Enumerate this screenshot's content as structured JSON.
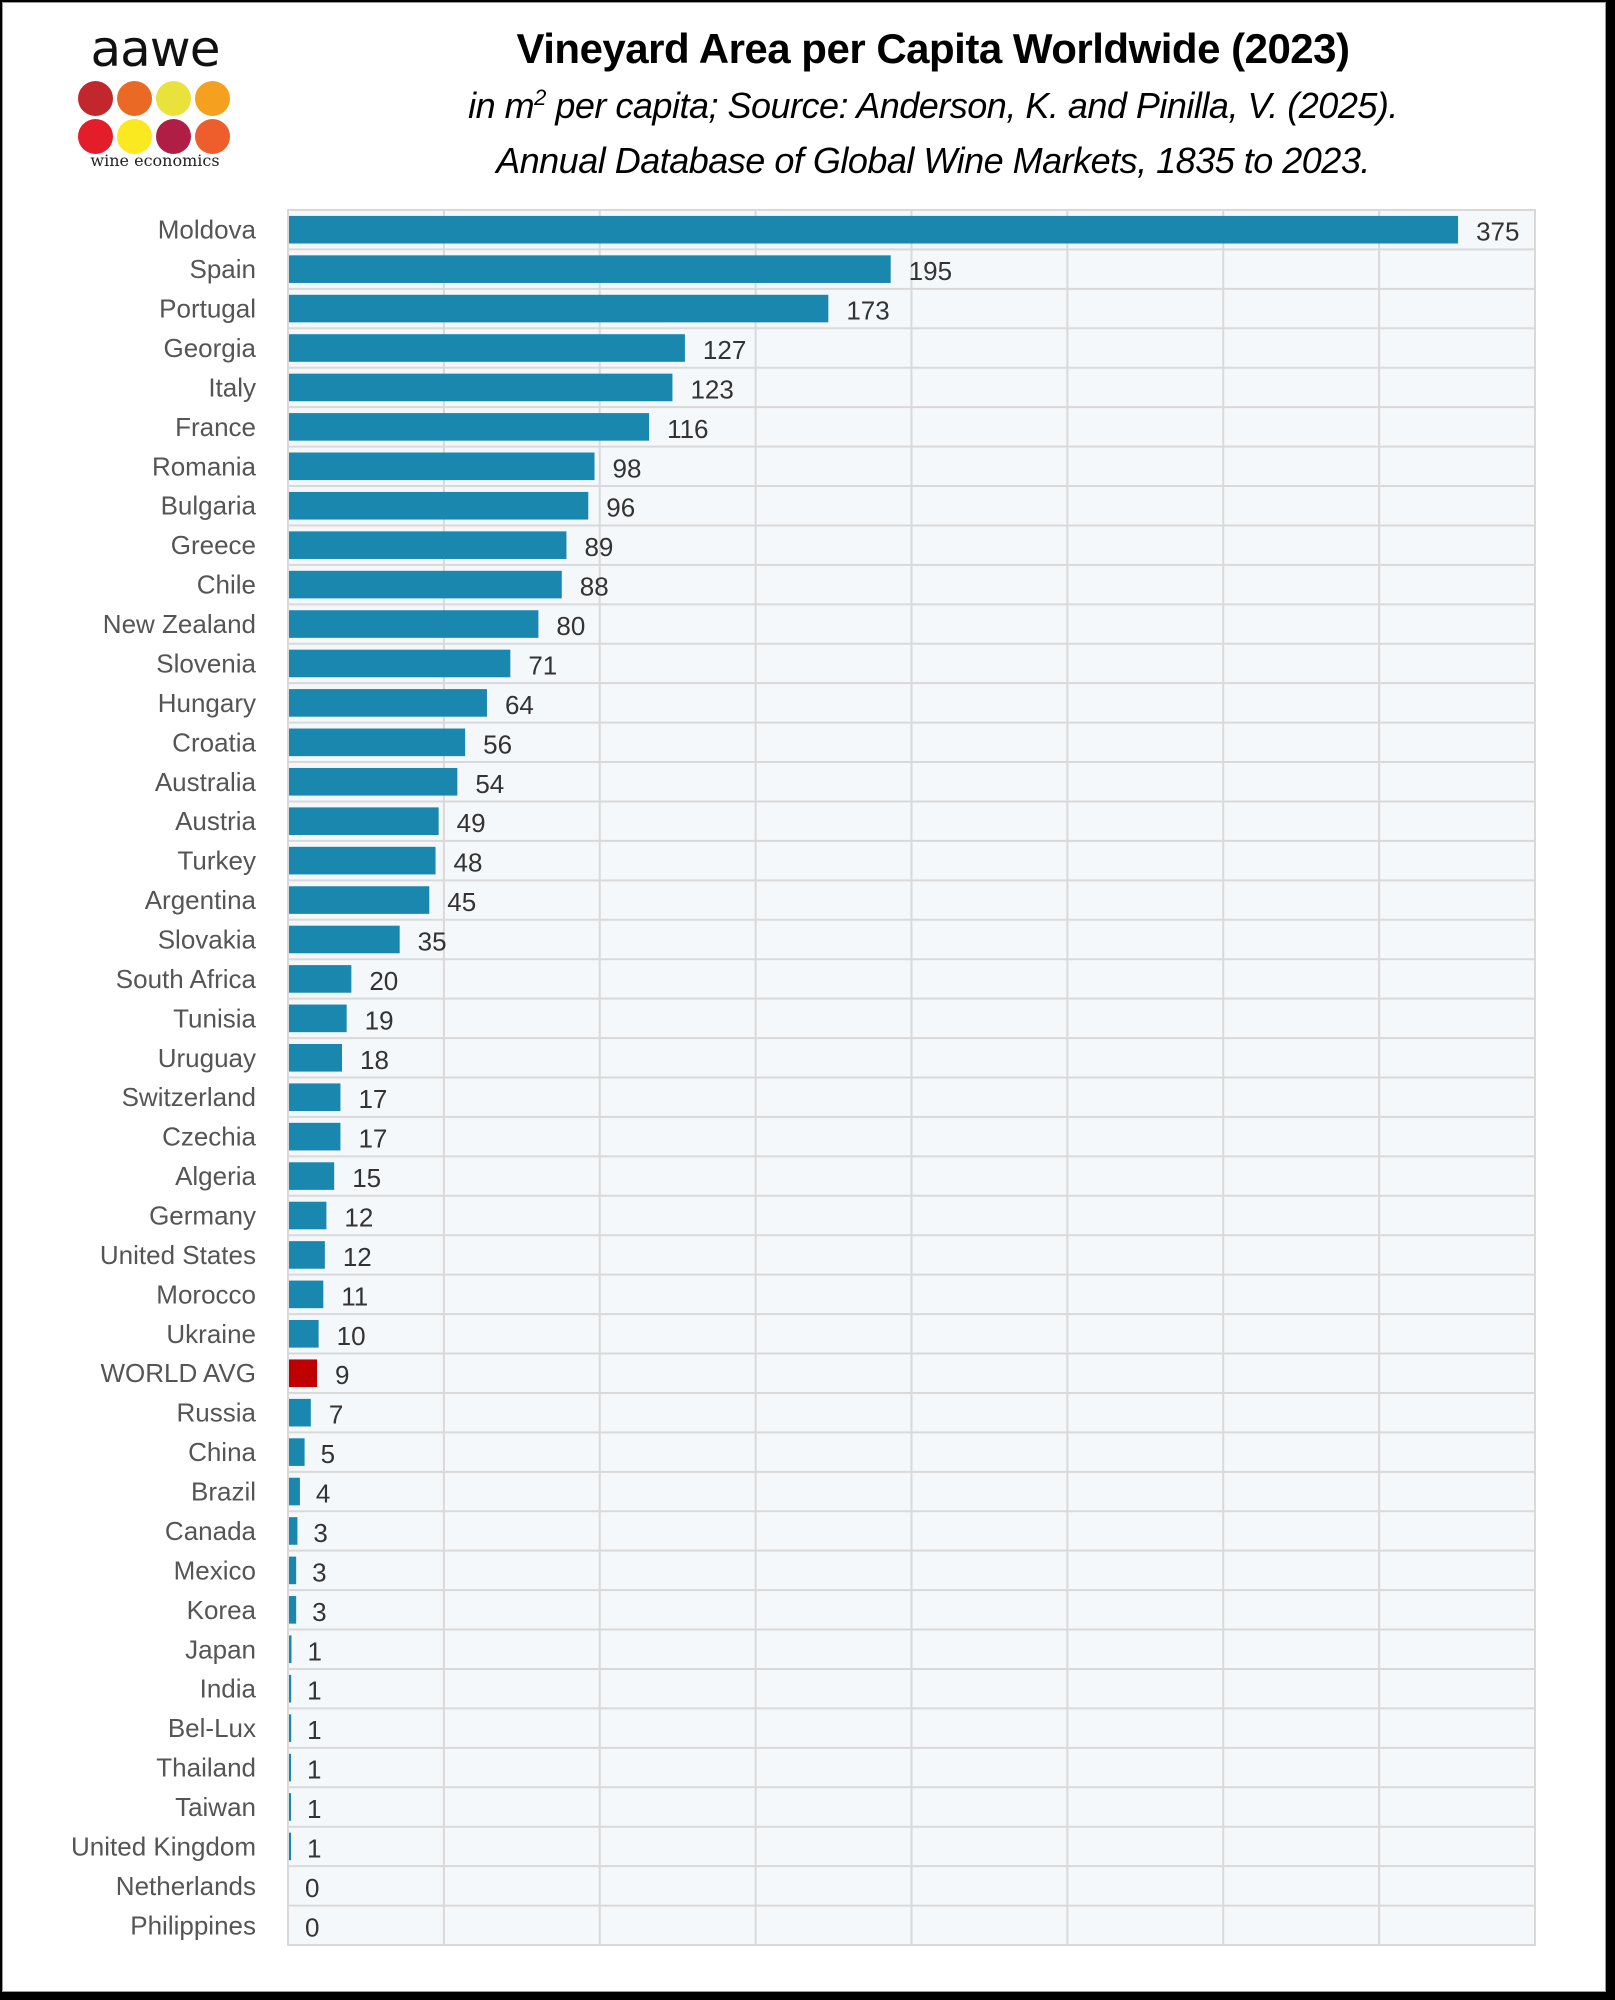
{
  "logo": {
    "wordmark": "aawe",
    "tagline": "wine economics",
    "dot_colors": [
      "#C1272D",
      "#EA6A25",
      "#E8E23A",
      "#F5A01E",
      "#E31D2A",
      "#FAE820",
      "#B01E45",
      "#EE5E2D"
    ]
  },
  "header": {
    "title": "Vineyard Area per Capita Worldwide (2023)",
    "subtitle_unit_prefix": "in m",
    "subtitle_unit_sup": "2",
    "subtitle_line1_rest": " per capita; Source: Anderson, K. and Pinilla, V. (2025).",
    "subtitle_line2": "Annual Database of Global Wine Markets, 1835 to 2023."
  },
  "chart_data": {
    "type": "bar",
    "orientation": "horizontal",
    "title": "Vineyard Area per Capita Worldwide (2023)",
    "subtitle": "in m2 per capita; Source: Anderson, K. and Pinilla, V. (2025). Annual Database of Global Wine Markets, 1835 to 2023.",
    "xlabel": "",
    "ylabel": "",
    "xlim": [
      0,
      400
    ],
    "x_grid_step": 50,
    "grid": true,
    "legend": "none",
    "colors": {
      "default": "#1A87AE",
      "highlight": "#C00000",
      "plot_bg": "#F5F8FB",
      "grid": "#D9D9D9"
    },
    "highlight_category": "WORLD AVG",
    "categories": [
      "Moldova",
      "Spain",
      "Portugal",
      "Georgia",
      "Italy",
      "France",
      "Romania",
      "Bulgaria",
      "Greece",
      "Chile",
      "New Zealand",
      "Slovenia",
      "Hungary",
      "Croatia",
      "Australia",
      "Austria",
      "Turkey",
      "Argentina",
      "Slovakia",
      "South Africa",
      "Tunisia",
      "Uruguay",
      "Switzerland",
      "Czechia",
      "Algeria",
      "Germany",
      "United States",
      "Morocco",
      "Ukraine",
      "WORLD AVG",
      "Russia",
      "China",
      "Brazil",
      "Canada",
      "Mexico",
      "Korea",
      "Japan",
      "India",
      "Bel-Lux",
      "Thailand",
      "Taiwan",
      "United Kingdom",
      "Netherlands",
      "Philippines"
    ],
    "values": [
      375,
      195,
      173,
      127,
      123,
      116,
      98,
      96,
      89,
      88,
      80,
      71,
      64,
      56,
      54,
      49,
      48,
      45,
      35,
      20,
      19,
      18,
      17,
      17,
      15,
      12,
      12,
      11,
      10,
      9,
      7,
      5,
      4,
      3,
      3,
      3,
      1,
      1,
      1,
      1,
      1,
      1,
      0,
      0
    ],
    "bar_lengths_approx": [
      375,
      193,
      173,
      127,
      123,
      115.5,
      98,
      96,
      89,
      87.5,
      80,
      71,
      63.5,
      56.5,
      54,
      48,
      47,
      45,
      35.5,
      20,
      18.5,
      17,
      16.5,
      16.5,
      14.5,
      12,
      11.5,
      11,
      9.5,
      9,
      7,
      5,
      3.5,
      2.7,
      2.3,
      2.3,
      0.8,
      0.7,
      0.7,
      0.6,
      0.5,
      0.4,
      0,
      0
    ]
  }
}
